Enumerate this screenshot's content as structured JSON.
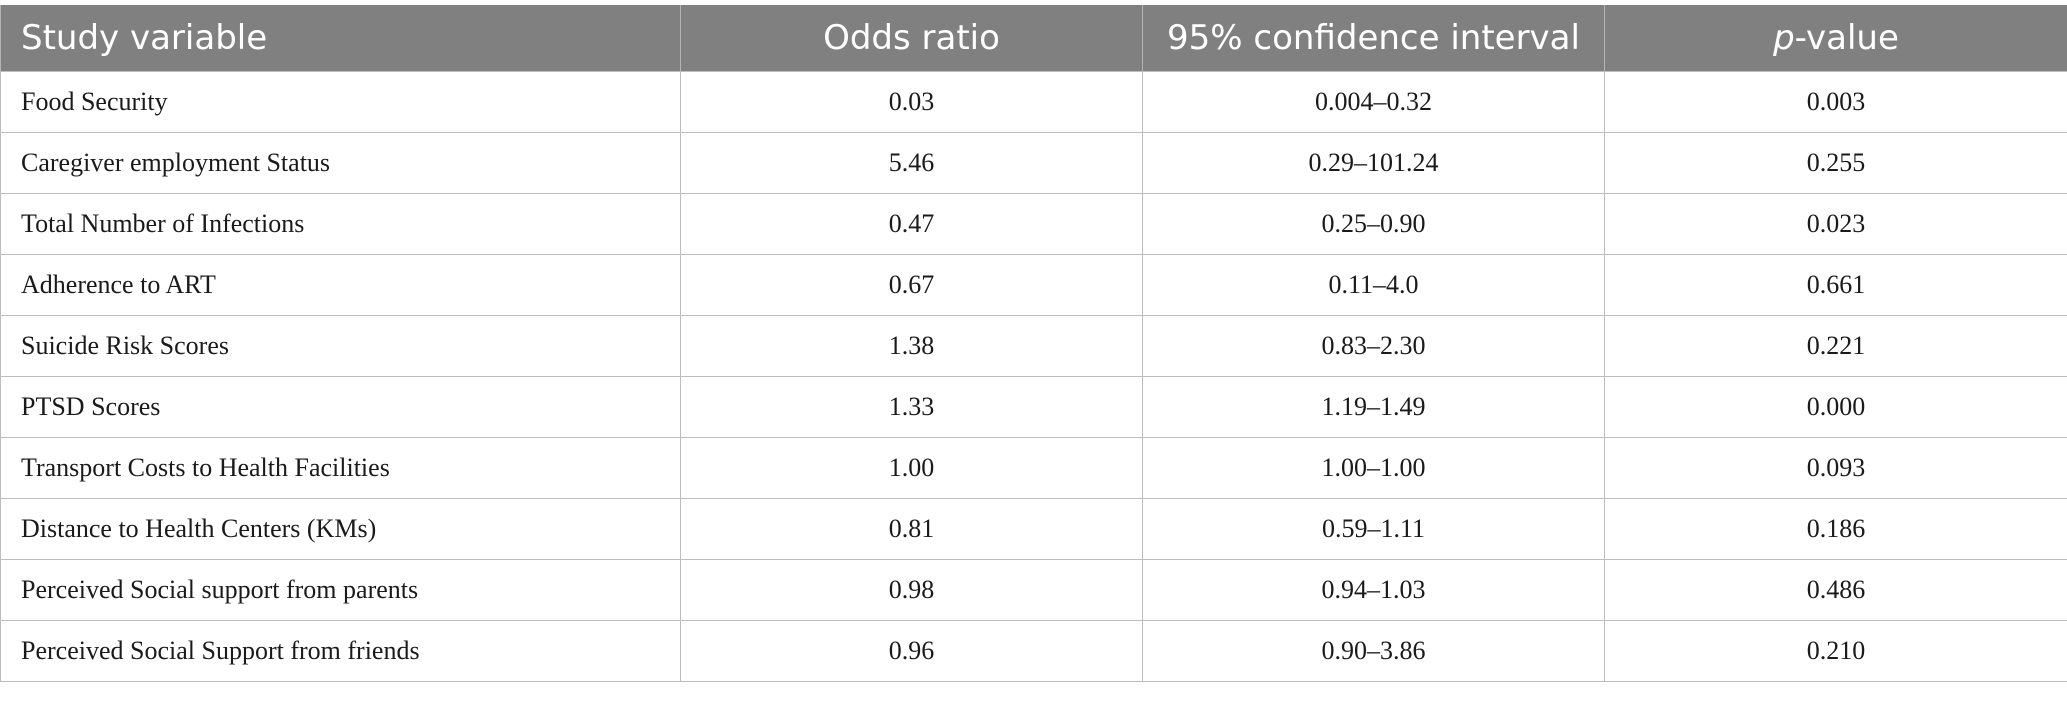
{
  "table": {
    "headers": {
      "study_variable": "Study variable",
      "odds_ratio": "Odds ratio",
      "ci": "95% confidence interval",
      "p_italic": "p",
      "p_rest": "-value"
    },
    "rows": [
      {
        "variable": "Food Security",
        "odds_ratio": "0.03",
        "ci": "0.004–0.32",
        "p": "0.003"
      },
      {
        "variable": "Caregiver employment Status",
        "odds_ratio": "5.46",
        "ci": "0.29–101.24",
        "p": "0.255"
      },
      {
        "variable": "Total Number of Infections",
        "odds_ratio": "0.47",
        "ci": "0.25–0.90",
        "p": "0.023"
      },
      {
        "variable": "Adherence to ART",
        "odds_ratio": "0.67",
        "ci": "0.11–4.0",
        "p": "0.661"
      },
      {
        "variable": "Suicide Risk Scores",
        "odds_ratio": "1.38",
        "ci": "0.83–2.30",
        "p": "0.221"
      },
      {
        "variable": "PTSD Scores",
        "odds_ratio": "1.33",
        "ci": "1.19–1.49",
        "p": "0.000"
      },
      {
        "variable": "Transport Costs to Health Facilities",
        "odds_ratio": "1.00",
        "ci": "1.00–1.00",
        "p": "0.093"
      },
      {
        "variable": "Distance to Health Centers (KMs)",
        "odds_ratio": "0.81",
        "ci": "0.59–1.11",
        "p": "0.186"
      },
      {
        "variable": "Perceived Social support from parents",
        "odds_ratio": "0.98",
        "ci": "0.94–1.03",
        "p": "0.486"
      },
      {
        "variable": "Perceived Social Support from friends",
        "odds_ratio": "0.96",
        "ci": "0.90–3.86",
        "p": "0.210"
      }
    ]
  }
}
